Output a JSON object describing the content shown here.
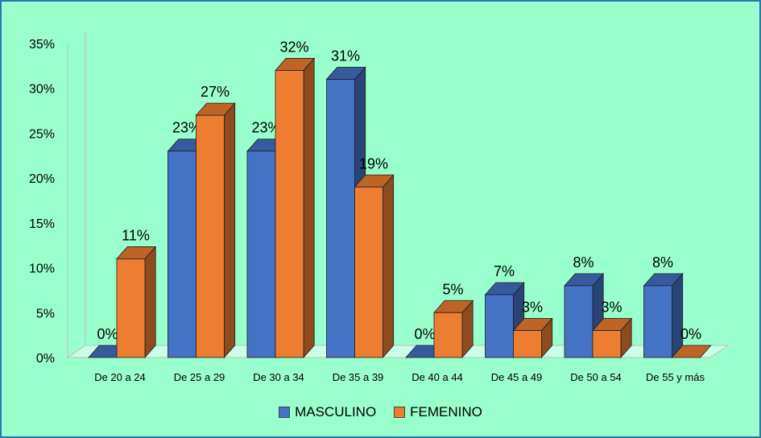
{
  "chart_data": {
    "type": "bar",
    "title": "",
    "xlabel": "",
    "ylabel": "",
    "ylim": [
      0,
      0.35
    ],
    "y_ticks": [
      "0%",
      "5%",
      "10%",
      "15%",
      "20%",
      "25%",
      "30%",
      "35%"
    ],
    "categories": [
      "De 20 a 24",
      "De 25 a 29",
      "De 30 a 34",
      "De 35 a 39",
      "De 40 a 44",
      "De 45 a 49",
      "De 50 a 54",
      "De 55 y más"
    ],
    "series": [
      {
        "name": "MASCULINO",
        "color": "#4472c4",
        "values": [
          0,
          0.23,
          0.23,
          0.31,
          0,
          0.07,
          0.08,
          0.08
        ],
        "labels": [
          "0%",
          "23%",
          "23%",
          "31%",
          "0%",
          "7%",
          "8%",
          "8%"
        ]
      },
      {
        "name": "FEMENINO",
        "color": "#ed7d31",
        "values": [
          0.11,
          0.27,
          0.32,
          0.19,
          0.05,
          0.03,
          0.03,
          0
        ],
        "labels": [
          "11%",
          "27%",
          "32%",
          "19%",
          "5%",
          "3%",
          "3%",
          "0%"
        ]
      }
    ],
    "legend_position": "bottom",
    "grid": false,
    "style": "3d-clustered-column"
  }
}
